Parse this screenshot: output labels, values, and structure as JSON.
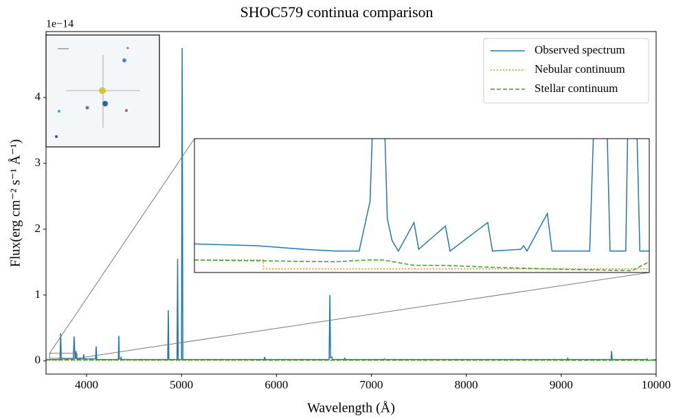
{
  "chart_data": {
    "type": "line",
    "title": "SHOC579 continua comparison",
    "xlabel": "Wavelength (Å)",
    "ylabel": "Flux(erg cm⁻² s⁻¹ Å⁻¹)",
    "y_offset_label": "1e−14",
    "xlim": [
      3573,
      10000
    ],
    "ylim": [
      -0.2,
      5.0
    ],
    "xticks": [
      4000,
      5000,
      6000,
      7000,
      8000,
      9000,
      10000
    ],
    "yticks": [
      0,
      1,
      2,
      3,
      4
    ],
    "legend": "upper right",
    "series": [
      {
        "name": "Observed spectrum",
        "color": "#1f77b4",
        "style": "solid",
        "x": [
          3573,
          3720,
          3727,
          3734,
          3860,
          3869,
          3878,
          3885,
          3889,
          3893,
          3965,
          3970,
          3975,
          4095,
          4101,
          4107,
          4335,
          4340,
          4345,
          4358,
          4363,
          4368,
          4855,
          4861,
          4867,
          4953,
          4959,
          4965,
          5000,
          5007,
          5014,
          5870,
          5876,
          5882,
          6555,
          6563,
          6570,
          6584,
          6590,
          6712,
          6720,
          6728,
          7130,
          7136,
          7142,
          9063,
          9069,
          9075,
          9525,
          9531,
          9537,
          9900,
          9905,
          9910,
          10000
        ],
        "values": [
          0.02,
          0.02,
          0.42,
          0.03,
          0.03,
          0.37,
          0.04,
          0.05,
          0.15,
          0.03,
          0.03,
          0.1,
          0.03,
          0.03,
          0.22,
          0.02,
          0.02,
          0.38,
          0.03,
          0.03,
          0.05,
          0.02,
          0.02,
          0.77,
          0.02,
          0.02,
          1.55,
          0.02,
          0.02,
          4.75,
          0.02,
          0.02,
          0.06,
          0.02,
          0.02,
          1.0,
          0.05,
          0.06,
          0.02,
          0.02,
          0.04,
          0.02,
          0.02,
          0.03,
          0.02,
          0.02,
          0.04,
          0.02,
          0.02,
          0.15,
          0.02,
          0.02,
          0.03,
          0.01,
          0.02
        ]
      },
      {
        "name": "Nebular continuum",
        "color": "#ff7f0e",
        "style": "dotted",
        "x": [
          3573,
          10000
        ],
        "values": [
          0.01,
          0.01
        ]
      },
      {
        "name": "Stellar continuum",
        "color": "#2ca02c",
        "style": "dashed",
        "x": [
          3573,
          5000,
          10000
        ],
        "values": [
          0.015,
          0.012,
          0.01
        ]
      }
    ],
    "inset": {
      "xlim": [
        3610,
        3900
      ],
      "ylim": [
        0.04,
        0.115
      ],
      "series": [
        {
          "color": "#1f77b4",
          "style": "solid",
          "x": [
            3610,
            3650,
            3680,
            3700,
            3715,
            3722,
            3725,
            3730,
            3733,
            3736,
            3740,
            3750,
            3753,
            3770,
            3773,
            3797,
            3800,
            3818,
            3820,
            3822,
            3835,
            3838,
            3862,
            3866,
            3872,
            3875,
            3885,
            3887,
            3891,
            3894,
            3900
          ],
          "values": [
            0.056,
            0.055,
            0.053,
            0.052,
            0.052,
            0.08,
            0.16,
            0.16,
            0.07,
            0.058,
            0.052,
            0.068,
            0.053,
            0.066,
            0.052,
            0.068,
            0.052,
            0.053,
            0.055,
            0.052,
            0.073,
            0.052,
            0.052,
            0.16,
            0.16,
            0.052,
            0.052,
            0.16,
            0.16,
            0.052,
            0.052
          ]
        },
        {
          "color": "#ff7f0e",
          "style": "dotted",
          "x": [
            3610,
            3654,
            3654,
            3900
          ],
          "values": [
            0.047,
            0.047,
            0.042,
            0.042
          ]
        },
        {
          "color": "#2ca02c",
          "style": "dashed",
          "x": [
            3610,
            3700,
            3720,
            3730,
            3750,
            3770,
            3797,
            3835,
            3889,
            3900
          ],
          "values": [
            0.047,
            0.046,
            0.047,
            0.047,
            0.044,
            0.044,
            0.043,
            0.042,
            0.041,
            0.046
          ]
        }
      ]
    }
  }
}
